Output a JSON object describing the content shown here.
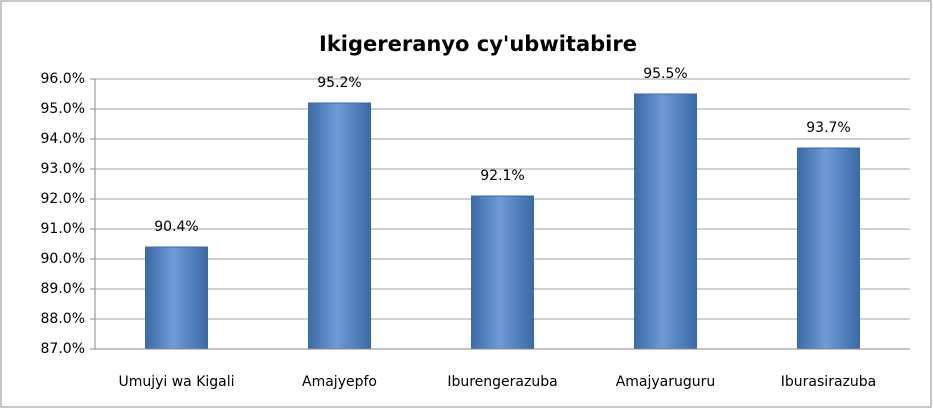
{
  "chart_data": {
    "type": "bar",
    "title": "Ikigereranyo cy'ubwitabire",
    "categories": [
      "Umujyi wa Kigali",
      "Amajyepfo",
      "Iburengerazuba",
      "Amajyaruguru",
      "Iburasirazuba"
    ],
    "values": [
      90.4,
      95.2,
      92.1,
      95.5,
      93.7
    ],
    "value_labels": [
      "90.4%",
      "95.2%",
      "92.1%",
      "95.5%",
      "93.7%"
    ],
    "color": "#4f81bd",
    "ylim": [
      87,
      96
    ],
    "yticks": [
      {
        "value": 87,
        "label": "87.0%"
      },
      {
        "value": 88,
        "label": "88.0%"
      },
      {
        "value": 89,
        "label": "89.0%"
      },
      {
        "value": 90,
        "label": "90.0%"
      },
      {
        "value": 91,
        "label": "91.0%"
      },
      {
        "value": 92,
        "label": "92.0%"
      },
      {
        "value": 93,
        "label": "93.0%"
      },
      {
        "value": 94,
        "label": "94.0%"
      },
      {
        "value": 95,
        "label": "95.0%"
      },
      {
        "value": 96,
        "label": "96.0%"
      }
    ],
    "grid": true
  }
}
